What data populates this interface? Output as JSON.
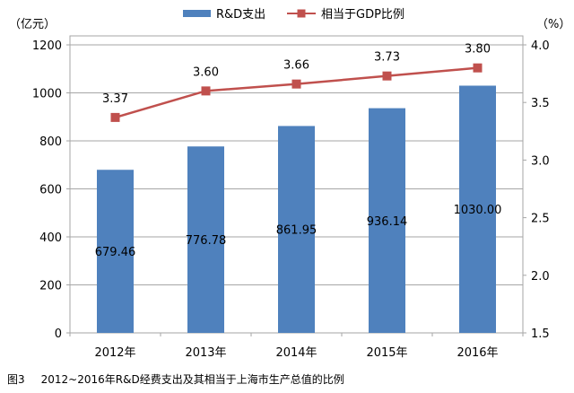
{
  "chart_data": {
    "type": "bar",
    "categories": [
      "2012年",
      "2013年",
      "2014年",
      "2015年",
      "2016年"
    ],
    "series": [
      {
        "name": "R&D支出",
        "type": "bar",
        "axis": "left",
        "color": "#4F81BD",
        "values": [
          679.46,
          776.78,
          861.95,
          936.14,
          1030.0
        ],
        "labels": [
          "679.46",
          "776.78",
          "861.95",
          "936.14",
          "1030.00"
        ]
      },
      {
        "name": "相当于GDP比例",
        "type": "line",
        "axis": "right",
        "color": "#C0504D",
        "values": [
          3.37,
          3.6,
          3.66,
          3.73,
          3.8
        ],
        "labels": [
          "3.37",
          "3.60",
          "3.66",
          "3.73",
          "3.80"
        ]
      }
    ],
    "y_left": {
      "unit": "（亿元）",
      "ylim": [
        0,
        1200
      ],
      "ticks": [
        0,
        200,
        400,
        600,
        800,
        1000,
        1200
      ],
      "tick_labels": [
        "0",
        "200",
        "400",
        "600",
        "800",
        "1000",
        "1200"
      ]
    },
    "y_right": {
      "unit": "（%）",
      "ylim": [
        1.5,
        4.0
      ],
      "ticks": [
        1.5,
        2.0,
        2.5,
        3.0,
        3.5,
        4.0
      ],
      "tick_labels": [
        "1.5",
        "2.0",
        "2.5",
        "3.0",
        "3.5",
        "4.0"
      ]
    },
    "grid": true,
    "legend": "top-center"
  },
  "caption": {
    "figure": "图3",
    "text": "2012~2016年R&D经费支出及其相当于上海市生产总值的比例"
  }
}
